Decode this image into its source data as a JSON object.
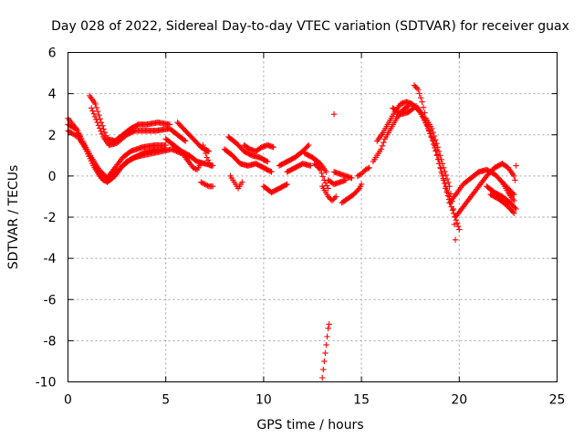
{
  "chart_data": {
    "type": "scatter",
    "title": "Day 028 of 2022, Sidereal Day-to-day VTEC variation (SDTVAR) for receiver guax",
    "xlabel": "GPS time / hours",
    "ylabel": "SDTVAR / TECUs",
    "xlim": [
      0,
      25
    ],
    "ylim": [
      -10,
      6
    ],
    "xticks": [
      0,
      5,
      10,
      15,
      20,
      25
    ],
    "yticks": [
      -10,
      -8,
      -6,
      -4,
      -2,
      0,
      2,
      4,
      6
    ],
    "grid": true,
    "marker": "+",
    "series": [
      {
        "name": "SDTVAR",
        "color": "#ff0000",
        "tracks": [
          [
            [
              0.0,
              2.5
            ],
            [
              0.4,
              2.3
            ],
            [
              0.8,
              1.6
            ],
            [
              1.2,
              0.9
            ],
            [
              1.6,
              0.3
            ],
            [
              2.0,
              -0.1
            ],
            [
              2.4,
              0.4
            ],
            [
              2.8,
              0.9
            ],
            [
              3.2,
              1.2
            ],
            [
              3.8,
              1.4
            ],
            [
              4.5,
              1.5
            ],
            [
              5.0,
              1.5
            ]
          ],
          [
            [
              0.0,
              2.8
            ],
            [
              0.5,
              2.2
            ],
            [
              0.9,
              1.3
            ],
            [
              1.3,
              0.5
            ],
            [
              1.7,
              -0.1
            ],
            [
              2.0,
              -0.3
            ],
            [
              2.4,
              0.0
            ],
            [
              2.8,
              0.5
            ],
            [
              3.2,
              0.8
            ],
            [
              3.8,
              1.1
            ],
            [
              4.5,
              1.3
            ],
            [
              5.0,
              1.3
            ]
          ],
          [
            [
              0.0,
              2.2
            ],
            [
              0.5,
              1.9
            ],
            [
              1.0,
              1.2
            ],
            [
              1.4,
              0.4
            ],
            [
              1.8,
              -0.2
            ],
            [
              2.1,
              -0.2
            ]
          ],
          [
            [
              1.1,
              3.9
            ],
            [
              1.4,
              3.5
            ],
            [
              1.7,
              2.6
            ],
            [
              2.0,
              1.8
            ],
            [
              2.4,
              1.7
            ],
            [
              2.8,
              2.0
            ],
            [
              3.2,
              2.3
            ],
            [
              3.6,
              2.5
            ],
            [
              4.0,
              2.5
            ],
            [
              4.6,
              2.6
            ],
            [
              5.2,
              2.5
            ]
          ],
          [
            [
              1.2,
              3.3
            ],
            [
              1.5,
              2.6
            ],
            [
              1.8,
              1.9
            ],
            [
              2.1,
              1.5
            ],
            [
              2.5,
              1.6
            ],
            [
              3.0,
              2.0
            ],
            [
              3.4,
              2.2
            ],
            [
              3.9,
              2.2
            ],
            [
              4.5,
              2.2
            ],
            [
              5.2,
              2.3
            ],
            [
              5.6,
              2.0
            ],
            [
              6.0,
              1.7
            ]
          ],
          [
            [
              2.2,
              0.0
            ],
            [
              2.6,
              0.3
            ],
            [
              3.0,
              0.7
            ],
            [
              3.4,
              0.9
            ],
            [
              3.8,
              1.0
            ],
            [
              4.3,
              1.1
            ],
            [
              4.8,
              1.2
            ],
            [
              5.3,
              1.3
            ],
            [
              5.8,
              1.1
            ],
            [
              6.2,
              0.9
            ]
          ],
          [
            [
              5.0,
              1.8
            ],
            [
              5.4,
              1.5
            ],
            [
              5.8,
              1.2
            ],
            [
              6.2,
              1.0
            ],
            [
              6.6,
              0.7
            ],
            [
              7.0,
              0.6
            ],
            [
              7.4,
              0.5
            ]
          ],
          [
            [
              5.6,
              2.6
            ],
            [
              6.0,
              2.2
            ],
            [
              6.4,
              1.8
            ],
            [
              6.8,
              1.4
            ],
            [
              7.2,
              1.2
            ]
          ],
          [
            [
              6.0,
              0.9
            ],
            [
              6.4,
              0.4
            ],
            [
              6.6,
              0.3
            ],
            [
              6.8,
              0.6
            ]
          ],
          [
            [
              6.9,
              1.5
            ],
            [
              7.1,
              0.9
            ],
            [
              7.3,
              0.5
            ]
          ],
          [
            [
              6.8,
              -0.3
            ],
            [
              7.0,
              -0.4
            ],
            [
              7.2,
              -0.5
            ],
            [
              7.4,
              -0.5
            ]
          ],
          [
            [
              8.0,
              1.3
            ],
            [
              8.4,
              1.0
            ],
            [
              8.8,
              0.6
            ],
            [
              9.2,
              0.5
            ],
            [
              9.6,
              0.6
            ],
            [
              10.0,
              0.4
            ],
            [
              10.4,
              0.2
            ]
          ],
          [
            [
              8.2,
              1.9
            ],
            [
              8.6,
              1.6
            ],
            [
              9.0,
              1.2
            ],
            [
              9.4,
              1.0
            ],
            [
              9.8,
              0.9
            ],
            [
              10.2,
              0.7
            ]
          ],
          [
            [
              8.3,
              0.0
            ],
            [
              8.5,
              -0.3
            ],
            [
              8.7,
              -0.6
            ],
            [
              8.9,
              -0.3
            ]
          ],
          [
            [
              9.0,
              1.5
            ],
            [
              9.3,
              1.3
            ],
            [
              9.6,
              1.2
            ],
            [
              9.9,
              1.4
            ],
            [
              10.2,
              1.5
            ],
            [
              10.5,
              1.4
            ]
          ],
          [
            [
              10.0,
              -0.5
            ],
            [
              10.4,
              -0.8
            ],
            [
              10.8,
              -0.6
            ],
            [
              11.2,
              -0.4
            ]
          ],
          [
            [
              10.8,
              0.5
            ],
            [
              11.2,
              0.7
            ],
            [
              11.6,
              0.9
            ],
            [
              12.0,
              1.2
            ],
            [
              12.3,
              1.5
            ]
          ],
          [
            [
              11.2,
              0.2
            ],
            [
              11.6,
              0.4
            ],
            [
              12.0,
              0.6
            ],
            [
              12.4,
              0.5
            ]
          ],
          [
            [
              12.1,
              1.1
            ],
            [
              12.5,
              0.9
            ],
            [
              12.9,
              0.6
            ],
            [
              13.2,
              0.2
            ]
          ],
          [
            [
              12.6,
              0.6
            ],
            [
              12.9,
              0.3
            ],
            [
              13.1,
              -0.2
            ],
            [
              13.3,
              -0.6
            ]
          ],
          [
            [
              13.0,
              -0.5
            ],
            [
              13.3,
              -1.0
            ],
            [
              13.5,
              -1.2
            ],
            [
              13.7,
              -1.0
            ]
          ],
          [
            [
              13.3,
              -0.2
            ],
            [
              13.6,
              -0.4
            ],
            [
              13.9,
              -0.3
            ],
            [
              14.2,
              -0.2
            ]
          ],
          [
            [
              13.6,
              0.2
            ],
            [
              13.9,
              0.1
            ],
            [
              14.2,
              0.0
            ],
            [
              14.5,
              -0.1
            ]
          ],
          [
            [
              14.0,
              -1.3
            ],
            [
              14.3,
              -1.1
            ],
            [
              14.6,
              -0.9
            ],
            [
              14.9,
              -0.6
            ],
            [
              15.0,
              -0.4
            ]
          ],
          [
            [
              14.8,
              0.0
            ],
            [
              15.0,
              0.1
            ],
            [
              15.2,
              0.3
            ],
            [
              15.4,
              0.4
            ]
          ],
          [
            [
              15.6,
              0.7
            ],
            [
              15.8,
              1.0
            ],
            [
              16.0,
              1.3
            ],
            [
              16.2,
              1.8
            ],
            [
              16.5,
              2.3
            ],
            [
              16.8,
              2.8
            ],
            [
              17.1,
              3.2
            ],
            [
              17.4,
              3.4
            ]
          ],
          [
            [
              15.8,
              1.7
            ],
            [
              16.1,
              2.1
            ],
            [
              16.4,
              2.6
            ],
            [
              16.7,
              3.1
            ],
            [
              17.0,
              3.5
            ],
            [
              17.3,
              3.6
            ],
            [
              17.6,
              3.5
            ],
            [
              18.0,
              3.1
            ],
            [
              18.4,
              2.4
            ],
            [
              18.8,
              1.2
            ],
            [
              19.2,
              -0.2
            ],
            [
              19.5,
              -1.0
            ]
          ],
          [
            [
              16.6,
              3.3
            ],
            [
              17.0,
              3.0
            ],
            [
              17.4,
              3.1
            ],
            [
              17.8,
              3.4
            ],
            [
              18.1,
              3.0
            ],
            [
              18.4,
              2.3
            ],
            [
              18.7,
              1.7
            ],
            [
              19.0,
              0.6
            ],
            [
              19.3,
              -0.6
            ],
            [
              19.6,
              -1.5
            ],
            [
              19.9,
              -2.3
            ],
            [
              20.0,
              -2.6
            ]
          ],
          [
            [
              17.7,
              4.4
            ],
            [
              17.9,
              4.2
            ],
            [
              18.1,
              3.6
            ],
            [
              18.3,
              2.8
            ],
            [
              18.6,
              2.3
            ],
            [
              18.9,
              1.4
            ],
            [
              19.2,
              0.4
            ],
            [
              19.5,
              -0.5
            ],
            [
              19.7,
              -1.6
            ],
            [
              19.8,
              -3.1
            ]
          ],
          [
            [
              19.5,
              -1.3
            ],
            [
              19.9,
              -0.8
            ],
            [
              20.2,
              -0.4
            ],
            [
              20.6,
              -0.1
            ],
            [
              21.0,
              0.2
            ],
            [
              21.4,
              0.3
            ],
            [
              21.8,
              0.1
            ],
            [
              22.2,
              -0.3
            ],
            [
              22.5,
              -0.8
            ],
            [
              22.8,
              -1.2
            ]
          ],
          [
            [
              19.8,
              -2.0
            ],
            [
              20.2,
              -1.5
            ],
            [
              20.6,
              -1.0
            ],
            [
              21.0,
              -0.5
            ],
            [
              21.4,
              0.0
            ],
            [
              21.8,
              0.4
            ],
            [
              22.2,
              0.6
            ],
            [
              22.5,
              0.4
            ],
            [
              22.8,
              0.0
            ]
          ],
          [
            [
              21.4,
              -0.5
            ],
            [
              21.8,
              -0.8
            ],
            [
              22.2,
              -1.0
            ],
            [
              22.6,
              -1.3
            ],
            [
              22.9,
              -1.6
            ]
          ],
          [
            [
              21.6,
              -0.9
            ],
            [
              22.0,
              -1.1
            ],
            [
              22.4,
              -1.4
            ],
            [
              22.8,
              -1.8
            ]
          ],
          [
            [
              22.2,
              -0.3
            ],
            [
              22.5,
              -0.6
            ],
            [
              22.8,
              -0.9
            ],
            [
              22.9,
              0.5
            ]
          ]
        ],
        "points": [
          [
            13.6,
            3.0
          ],
          [
            13.0,
            -9.8
          ],
          [
            13.05,
            -9.4
          ],
          [
            13.1,
            -9.0
          ],
          [
            13.15,
            -8.6
          ],
          [
            13.2,
            -8.2
          ],
          [
            13.25,
            -7.8
          ],
          [
            13.3,
            -7.4
          ],
          [
            13.35,
            -7.2
          ]
        ]
      }
    ]
  }
}
